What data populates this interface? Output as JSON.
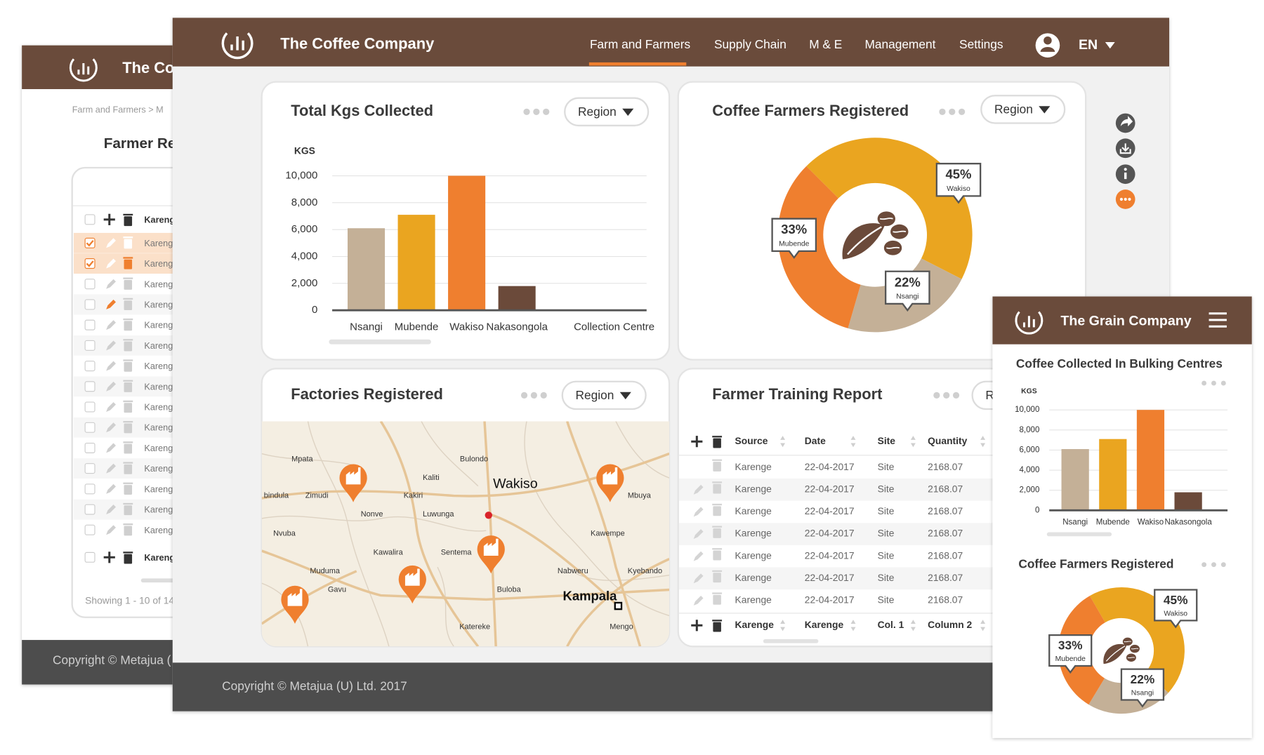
{
  "back_window": {
    "brand": "The Co",
    "breadcrumb": "Farm and Farmers > M",
    "page_title": "Farmer Re",
    "table": {
      "header": "Kareng",
      "rows": [
        "Kareng",
        "Kareng",
        "Kareng",
        "Kareng",
        "Kareng",
        "Kareng",
        "Kareng",
        "Kareng",
        "Kareng",
        "Kareng",
        "Kareng",
        "Kareng",
        "Kareng",
        "Kareng",
        "Kareng"
      ],
      "footer": "Kareng"
    },
    "pagination": "Showing 1 - 10 of 14",
    "copyright": "Copyright © Metajua ("
  },
  "main_window": {
    "brand": "The Coffee Company",
    "nav": [
      "Farm and Farmers",
      "Supply Chain",
      "M & E",
      "Management",
      "Settings"
    ],
    "language": "EN",
    "copyright": "Copyright © Metajua (U) Ltd. 2017",
    "total_kgs": {
      "title": "Total Kgs Collected",
      "filter": "Region",
      "chart": {
        "type": "bar",
        "y_label": "KGS",
        "x_label": "Collection Centre",
        "categories": [
          "Nsangi",
          "Mubende",
          "Wakiso",
          "Nakasongola"
        ],
        "values": [
          6100,
          7100,
          10000,
          1800
        ],
        "colors": [
          "#c4b097",
          "#eaa520",
          "#ef7f2f",
          "#6b4a3a"
        ],
        "ylim": [
          0,
          10000
        ],
        "yticks": [
          0,
          {
            "value": 2000,
            "label": "2,000"
          },
          {
            "value": 4000,
            "label": "4,000"
          },
          {
            "value": 6000,
            "label": "6,000"
          },
          {
            "value": 8000,
            "label": "8,000"
          },
          {
            "value": 10000,
            "label": "10,000"
          }
        ],
        "grid": true
      }
    },
    "farmers_registered": {
      "title": "Coffee Farmers Registered",
      "filter": "Region",
      "chart": {
        "type": "donut",
        "categories": [
          "Wakiso",
          "Nsangi",
          "Mubende"
        ],
        "values": [
          45,
          22,
          33
        ],
        "value_labels": [
          "45%",
          "22%",
          "33%"
        ],
        "colors": [
          "#eaa520",
          "#c4b097",
          "#ef7f2f"
        ]
      }
    },
    "factories": {
      "title": "Factories Registered",
      "filter": "Region",
      "map": {
        "places": [
          "Mpata",
          "Bulondo",
          "Kaliti",
          "Wakiso",
          "bindula",
          "Zimudi",
          "Kakiri",
          "Mbuya",
          "Nonve",
          "Luwunga",
          "Nvuba",
          "Kawempe",
          "Kawalira",
          "Sentema",
          "Muduma",
          "Nabweru",
          "Kyebando",
          "Gavu",
          "Buloba",
          "Kampala",
          "Katereke",
          "Mengo"
        ]
      }
    },
    "training": {
      "title": "Farmer Training Report",
      "filter": "Region",
      "table": {
        "columns": [
          "Source",
          "Date",
          "Site",
          "Quantity"
        ],
        "rows": [
          [
            "Karenge",
            "22-04-2017",
            "Site",
            2168.07
          ],
          [
            "Karenge",
            "22-04-2017",
            "Site",
            2168.07
          ],
          [
            "Karenge",
            "22-04-2017",
            "Site",
            2168.07
          ],
          [
            "Karenge",
            "22-04-2017",
            "Site",
            2168.07
          ],
          [
            "Karenge",
            "22-04-2017",
            "Site",
            2168.07
          ],
          [
            "Karenge",
            "22-04-2017",
            "Site",
            2168.07
          ],
          [
            "Karenge",
            "22-04-2017",
            "Site",
            2168.07
          ]
        ],
        "footer": [
          "Karenge",
          "Karenge",
          "Col. 1",
          "Column 2"
        ]
      }
    }
  },
  "mobile": {
    "brand": "The Grain Company",
    "collected": {
      "title": "Coffee Collected In Bulking Centres",
      "chart": {
        "type": "bar",
        "y_label": "KGS",
        "categories": [
          "Nsangi",
          "Mubende",
          "Wakiso",
          "Nakasongola"
        ],
        "values": [
          6100,
          7100,
          10000,
          1800
        ],
        "colors": [
          "#c4b097",
          "#eaa520",
          "#ef7f2f",
          "#6b4a3a"
        ],
        "ylim": [
          0,
          10000
        ],
        "yticks": [
          0,
          {
            "value": 2000,
            "label": "2,000"
          },
          {
            "value": 4000,
            "label": "4,000"
          },
          {
            "value": 6000,
            "label": "6,000"
          },
          {
            "value": 8000,
            "label": "8,000"
          },
          {
            "value": 10000,
            "label": "10,000"
          }
        ],
        "grid": true
      }
    },
    "farmers_registered": {
      "title": "Coffee Farmers Registered",
      "chart": {
        "type": "donut",
        "categories": [
          "Wakiso",
          "Nsangi",
          "Mubende"
        ],
        "values": [
          45,
          22,
          33
        ],
        "value_labels": [
          "45%",
          "22%",
          "33%"
        ],
        "colors": [
          "#eaa520",
          "#c4b097",
          "#ef7f2f"
        ]
      }
    }
  }
}
